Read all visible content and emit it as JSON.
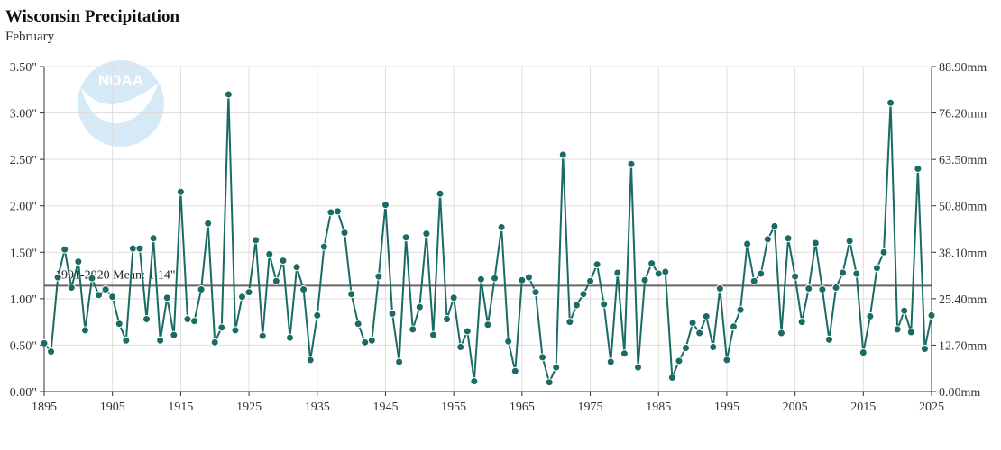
{
  "title": "Wisconsin Precipitation",
  "subtitle": "February",
  "colors": {
    "series": "#1a6b63",
    "points": "#1a6b63",
    "point_stroke": "#ffffff",
    "mean_line": "#666666",
    "grid": "#dddddd",
    "axis": "#333333",
    "logo": "#d6e9f7"
  },
  "logo": {
    "icon": "noaa-logo-icon",
    "text": "NOAA"
  },
  "chart_data": {
    "type": "line",
    "x_label": "",
    "y_label": "",
    "xlim": [
      1895,
      2025
    ],
    "ylim": [
      0,
      3.5
    ],
    "x_ticks": [
      1895,
      1905,
      1915,
      1925,
      1935,
      1945,
      1955,
      1965,
      1975,
      1985,
      1995,
      2005,
      2015,
      2025
    ],
    "y_ticks_left": [
      "0.00\"",
      "0.50\"",
      "1.00\"",
      "1.50\"",
      "2.00\"",
      "2.50\"",
      "3.00\"",
      "3.50\""
    ],
    "y_ticks_right": [
      "0.00mm",
      "12.70mm",
      "25.40mm",
      "38.10mm",
      "50.80mm",
      "63.50mm",
      "76.20mm",
      "88.90mm"
    ],
    "grid": true,
    "mean": {
      "value": 1.14,
      "label": "1991-2020 Mean: 1.14\""
    },
    "series": [
      {
        "x": [
          1895,
          1896,
          1897,
          1898,
          1899,
          1900,
          1901,
          1902,
          1903,
          1904,
          1905,
          1906,
          1907,
          1908,
          1909,
          1910,
          1911,
          1912,
          1913,
          1914,
          1915,
          1916,
          1917,
          1918,
          1919,
          1920,
          1921,
          1922,
          1923,
          1924,
          1925,
          1926,
          1927,
          1928,
          1929,
          1930,
          1931,
          1932,
          1933,
          1934,
          1935,
          1936,
          1937,
          1938,
          1939,
          1940,
          1941,
          1942,
          1943,
          1944,
          1945,
          1946,
          1947,
          1948,
          1949,
          1950,
          1951,
          1952,
          1953,
          1954,
          1955,
          1956,
          1957,
          1958,
          1959,
          1960,
          1961,
          1962,
          1963,
          1964,
          1965,
          1966,
          1967,
          1968,
          1969,
          1970,
          1971,
          1972,
          1973,
          1974,
          1975,
          1976,
          1977,
          1978,
          1979,
          1980,
          1981,
          1982,
          1983,
          1984,
          1985,
          1986,
          1987,
          1988,
          1989,
          1990,
          1991,
          1992,
          1993,
          1994,
          1995,
          1996,
          1997,
          1998,
          1999,
          2000,
          2001,
          2002,
          2003,
          2004,
          2005,
          2006,
          2007,
          2008,
          2009,
          2010,
          2011,
          2012,
          2013,
          2014,
          2015,
          2016,
          2017,
          2018,
          2019,
          2020,
          2021,
          2022,
          2023,
          2024,
          2025
        ],
        "values": [
          0.52,
          0.43,
          1.23,
          1.53,
          1.12,
          1.4,
          0.66,
          1.22,
          1.04,
          1.1,
          1.02,
          0.73,
          0.55,
          1.54,
          1.54,
          0.78,
          1.65,
          0.55,
          1.01,
          0.61,
          2.15,
          0.78,
          0.76,
          1.1,
          1.81,
          0.53,
          0.69,
          3.2,
          0.66,
          1.02,
          1.07,
          1.63,
          0.6,
          1.48,
          1.19,
          1.41,
          0.58,
          1.34,
          1.1,
          0.34,
          0.82,
          1.56,
          1.93,
          1.94,
          1.71,
          1.05,
          0.73,
          0.53,
          0.55,
          1.24,
          2.01,
          0.84,
          0.32,
          1.66,
          0.67,
          0.91,
          1.7,
          0.61,
          2.13,
          0.78,
          1.01,
          0.48,
          0.65,
          0.11,
          1.21,
          0.72,
          1.22,
          1.77,
          0.54,
          0.22,
          1.2,
          1.23,
          1.07,
          0.37,
          0.1,
          0.26,
          2.55,
          0.75,
          0.93,
          1.05,
          1.19,
          1.37,
          0.94,
          0.32,
          1.28,
          0.41,
          2.45,
          0.26,
          1.2,
          1.38,
          1.27,
          1.29,
          0.15,
          0.33,
          0.47,
          0.74,
          0.63,
          0.81,
          0.48,
          1.11,
          0.34,
          0.7,
          0.88,
          1.59,
          1.19,
          1.27,
          1.64,
          1.78,
          0.63,
          1.65,
          1.24,
          0.75,
          1.11,
          1.6,
          1.1,
          0.56,
          1.12,
          1.28,
          1.62,
          1.27,
          0.42,
          0.81,
          1.33,
          1.5,
          3.11,
          0.67,
          0.87,
          0.64,
          2.4,
          0.46,
          0.82
        ]
      }
    ]
  }
}
